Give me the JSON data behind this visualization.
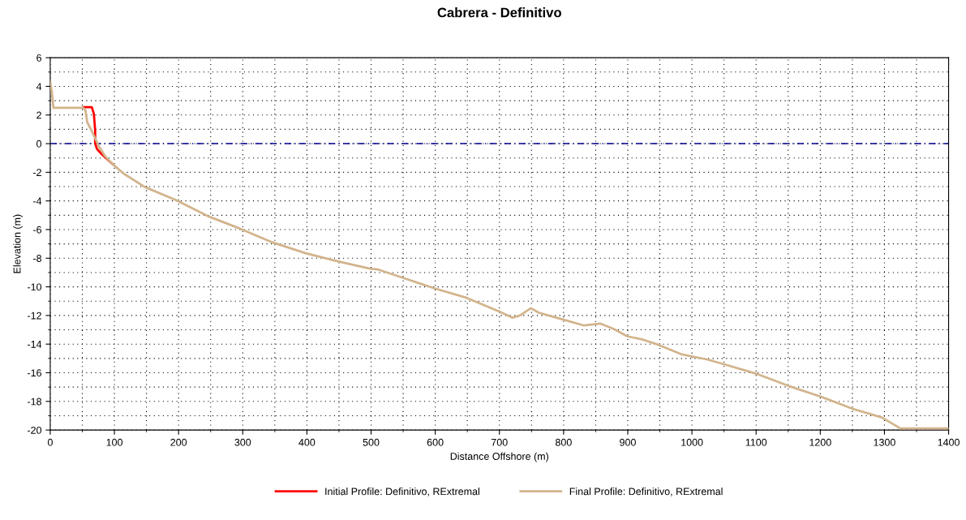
{
  "chart_data": {
    "type": "line",
    "title": "Cabrera - Definitivo",
    "xlabel": "Distance Offshore (m)",
    "ylabel": "Elevation (m)",
    "xlim": [
      0,
      1400
    ],
    "ylim": [
      -20,
      6
    ],
    "xticks": [
      0,
      100,
      200,
      300,
      400,
      500,
      600,
      700,
      800,
      900,
      1000,
      1100,
      1200,
      1300,
      1400
    ],
    "yticks": [
      -20,
      -18,
      -16,
      -14,
      -12,
      -10,
      -8,
      -6,
      -4,
      -2,
      0,
      2,
      4,
      6
    ],
    "grid": true,
    "legend": "bottom",
    "line_style": "solid",
    "marker": "none",
    "ref_lines": [
      {
        "axis": "y",
        "value": 0,
        "color": "#00008b",
        "line_style": "dashed"
      }
    ],
    "series": [
      {
        "name": "Initial Profile: Definitivo, RExtremal",
        "color": "#ff0000",
        "x": [
          51.5,
          64.8,
          68,
          70,
          70,
          73,
          80.5,
          97
        ],
        "values": [
          2.55,
          2.55,
          2.08,
          0.94,
          0,
          -0.38,
          -0.75,
          -1.42
        ]
      },
      {
        "name": "Final Profile: Definitivo, RExtremal",
        "color": "#d2b48c",
        "x": [
          0,
          2.5,
          5,
          51.5,
          55,
          57.7,
          64,
          70,
          76,
          85,
          97,
          114,
          147,
          197,
          247,
          296,
          346,
          398,
          448,
          498,
          511,
          599,
          649,
          699,
          720,
          732,
          749,
          761.5,
          799,
          832,
          857,
          878,
          899,
          924,
          949,
          983,
          1024.5,
          1049,
          1100,
          1150,
          1200,
          1250,
          1296,
          1325,
          1400
        ],
        "values": [
          4.3,
          3.6,
          2.5,
          2.5,
          2.3,
          1.5,
          0.94,
          0.38,
          -0.19,
          -0.85,
          -1.42,
          -2.08,
          -3.02,
          -3.96,
          -5.09,
          -5.94,
          -6.89,
          -7.65,
          -8.22,
          -8.73,
          -8.79,
          -10.11,
          -10.77,
          -11.71,
          -12.15,
          -12.0,
          -11.49,
          -11.81,
          -12.28,
          -12.7,
          -12.56,
          -12.94,
          -13.45,
          -13.69,
          -14.07,
          -14.7,
          -15.08,
          -15.39,
          -16.06,
          -16.91,
          -17.66,
          -18.51,
          -19.12,
          -19.89,
          -19.89
        ]
      }
    ]
  }
}
